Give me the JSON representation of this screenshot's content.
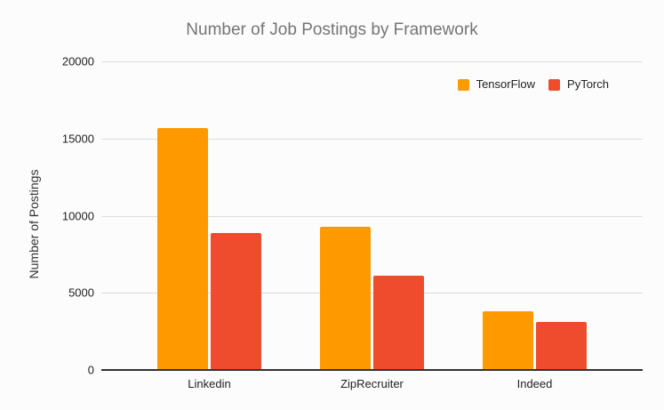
{
  "chart_data": {
    "type": "bar",
    "title": "Number of Job Postings by Framework",
    "xlabel": "",
    "ylabel": "Number of Postings",
    "categories": [
      "Linkedin",
      "ZipRecruiter",
      "Indeed"
    ],
    "series": [
      {
        "name": "TensorFlow",
        "color": "#FF9900",
        "values": [
          15700,
          9300,
          3800
        ]
      },
      {
        "name": "PyTorch",
        "color": "#EE4C2C",
        "values": [
          8900,
          6100,
          3100
        ]
      }
    ],
    "ylim": [
      0,
      20000
    ],
    "yticks": [
      0,
      5000,
      10000,
      15000,
      20000
    ],
    "grid": true,
    "legend_position": "top-right",
    "gridline_color": "#dcdcdc",
    "axis_line_color": "#333333",
    "title_color": "#757575"
  }
}
